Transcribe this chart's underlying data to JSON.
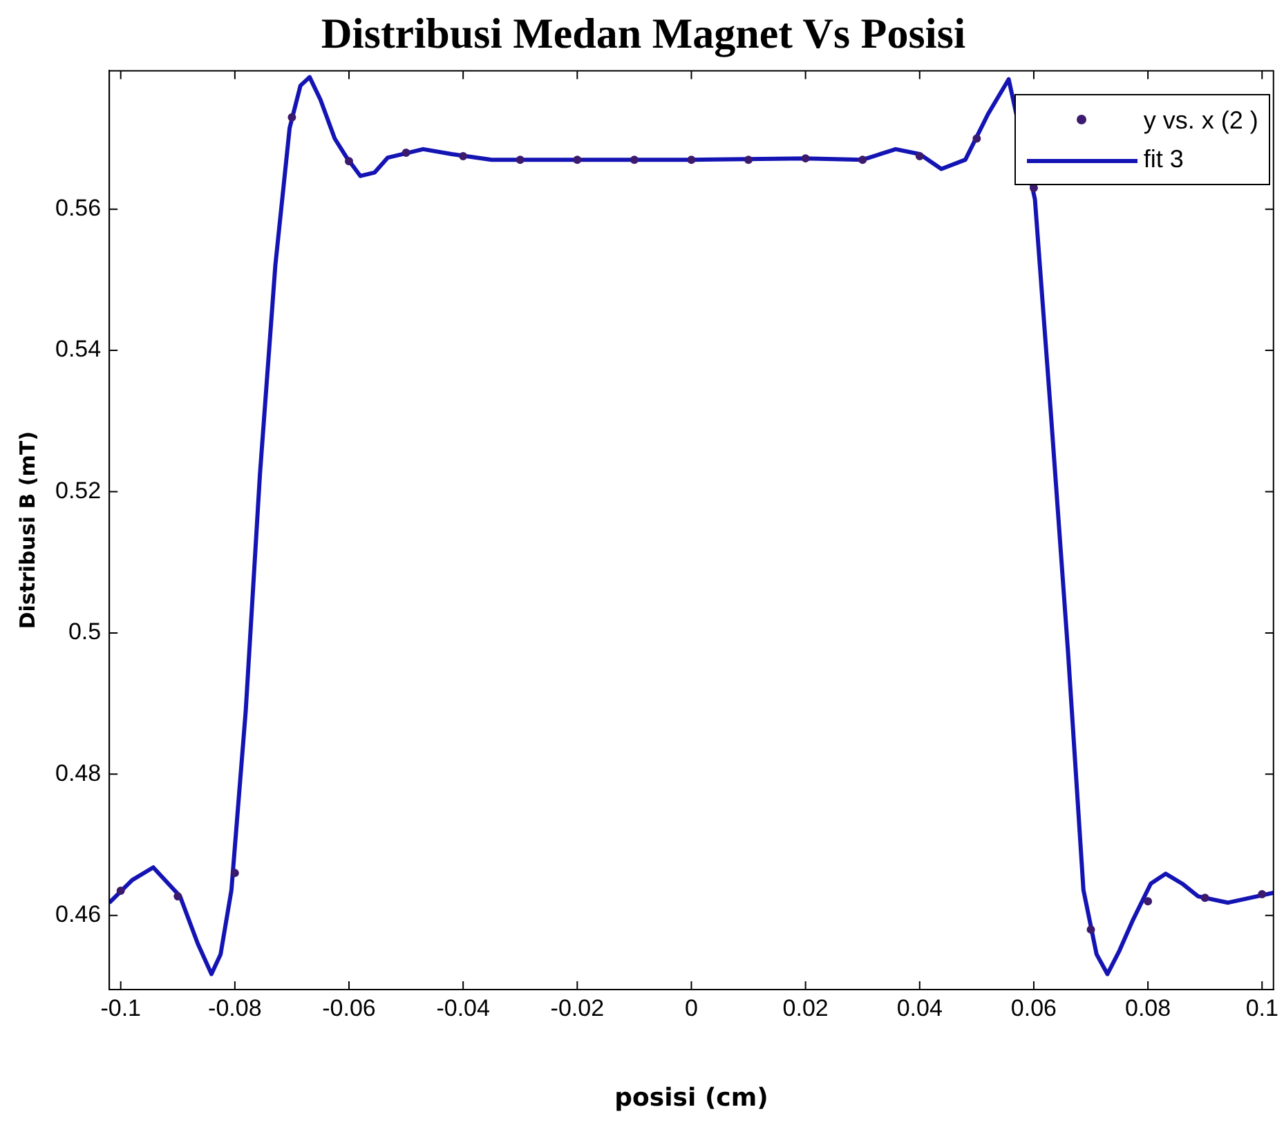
{
  "chart_data": {
    "type": "line",
    "title": "Distribusi Medan Magnet Vs Posisi",
    "xlabel": "posisi (cm)",
    "ylabel": "Distribusi B (mT)",
    "xlim": [
      -0.102,
      0.102
    ],
    "xticks": [
      -0.1,
      -0.08,
      -0.06,
      -0.04,
      -0.02,
      0,
      0.02,
      0.04,
      0.06,
      0.08,
      0.1
    ],
    "ylim": [
      0.4495,
      0.5796
    ],
    "yticks": [
      0.46,
      0.48,
      0.5,
      0.52,
      0.54,
      0.56
    ],
    "grid": false,
    "legend": "top right",
    "series": [
      {
        "name": "y vs. x (2 )",
        "type": "scatter",
        "marker": "circle",
        "color": "#3c1a6e",
        "x": [
          -0.1,
          -0.09,
          -0.08,
          -0.07,
          -0.06,
          -0.05,
          -0.04,
          -0.03,
          -0.02,
          -0.01,
          0,
          0.01,
          0.02,
          0.03,
          0.04,
          0.05,
          0.06,
          0.07,
          0.08,
          0.09,
          0.1
        ],
        "values": [
          0.4635,
          0.4627,
          0.466,
          0.573,
          0.5668,
          0.568,
          0.5675,
          0.567,
          0.567,
          0.567,
          0.567,
          0.567,
          0.5672,
          0.567,
          0.5675,
          0.57,
          0.563,
          0.458,
          0.462,
          0.4625,
          0.463
        ]
      },
      {
        "name": "fit 3",
        "type": "line",
        "marker": "none",
        "line_style": "solid",
        "color": "#1414b4",
        "x": [
          -0.102,
          -0.098,
          -0.0943,
          -0.0896,
          -0.0865,
          -0.0841,
          -0.0825,
          -0.0806,
          -0.0781,
          -0.0756,
          -0.0729,
          -0.0704,
          -0.0685,
          -0.0669,
          -0.065,
          -0.0625,
          -0.0604,
          -0.058,
          -0.0555,
          -0.0532,
          -0.047,
          -0.042,
          -0.035,
          -0.02,
          0,
          0.02,
          0.03,
          0.0358,
          0.04,
          0.0438,
          0.048,
          0.052,
          0.0556,
          0.058,
          0.0602,
          0.063,
          0.066,
          0.0687,
          0.071,
          0.0729,
          0.075,
          0.0774,
          0.0805,
          0.0831,
          0.086,
          0.0888,
          0.094,
          0.098,
          0.102
        ],
        "values": [
          0.4618,
          0.465,
          0.4668,
          0.4627,
          0.456,
          0.4517,
          0.4545,
          0.4636,
          0.4889,
          0.5225,
          0.5521,
          0.5715,
          0.5775,
          0.5787,
          0.5755,
          0.57,
          0.5673,
          0.5647,
          0.5652,
          0.5673,
          0.5685,
          0.5678,
          0.567,
          0.567,
          0.567,
          0.5672,
          0.567,
          0.5685,
          0.5678,
          0.5657,
          0.567,
          0.5735,
          0.5784,
          null,
          0.5614,
          0.531,
          0.4973,
          0.4636,
          0.4545,
          0.4517,
          0.455,
          0.4594,
          0.4645,
          0.4659,
          0.4645,
          0.4627,
          0.4618,
          0.4625,
          0.4632
        ]
      }
    ]
  }
}
